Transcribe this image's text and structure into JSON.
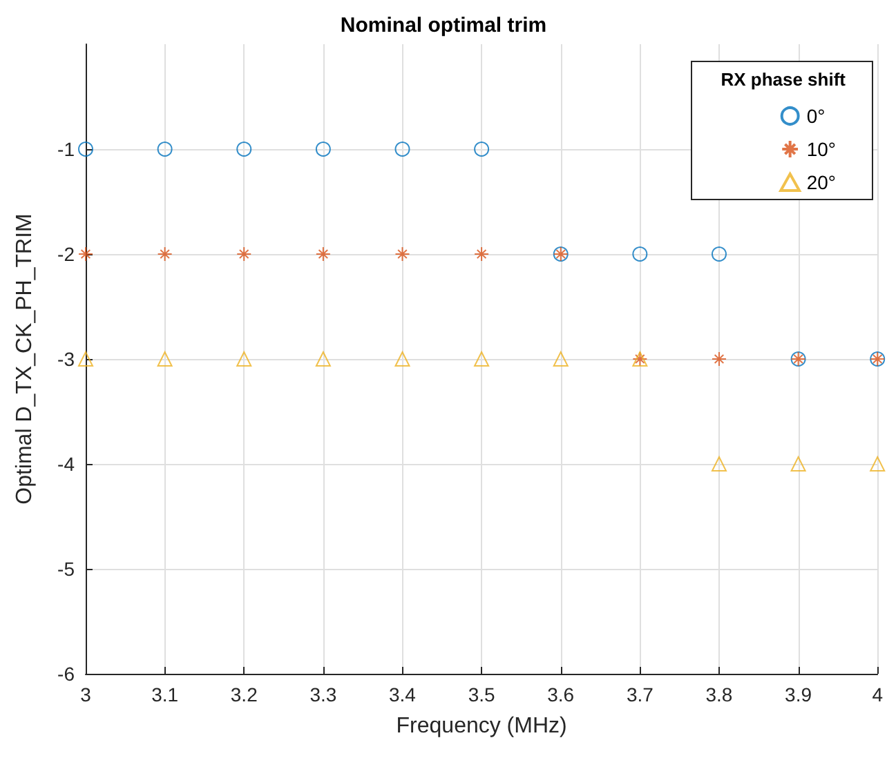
{
  "chart_data": {
    "type": "scatter",
    "title": "Nominal optimal trim",
    "xlabel": "Frequency (MHz)",
    "ylabel": "Optimal D_TX_CK_PH_TRIM",
    "legend_title": "RX phase shift",
    "x": [
      3.0,
      3.1,
      3.2,
      3.3,
      3.4,
      3.5,
      3.6,
      3.7,
      3.8,
      3.9,
      4.0
    ],
    "series": [
      {
        "name": "0°",
        "color": "#0072bd",
        "marker": "circle",
        "values": [
          -1,
          -1,
          -1,
          -1,
          -1,
          -1,
          -2,
          -2,
          -2,
          -3,
          -3
        ]
      },
      {
        "name": "10°",
        "color": "#d95319",
        "marker": "cross",
        "values": [
          -2,
          -2,
          -2,
          -2,
          -2,
          -2,
          -2,
          -3,
          -3,
          -3,
          -3
        ]
      },
      {
        "name": "20°",
        "color": "#edb120",
        "marker": "triangle",
        "values": [
          -3,
          -3,
          -3,
          -3,
          -3,
          -3,
          -3,
          -3,
          -4,
          -4,
          -4
        ]
      }
    ],
    "xlim": [
      3,
      4
    ],
    "xticks": [
      3,
      3.1,
      3.2,
      3.3,
      3.4,
      3.5,
      3.6,
      3.7,
      3.8,
      3.9,
      4
    ],
    "ylim": [
      -6,
      0
    ],
    "yticks": [
      -6,
      -5,
      -4,
      -3,
      -2,
      -1
    ],
    "grid": true,
    "legend": "top right",
    "line_style": "none"
  }
}
